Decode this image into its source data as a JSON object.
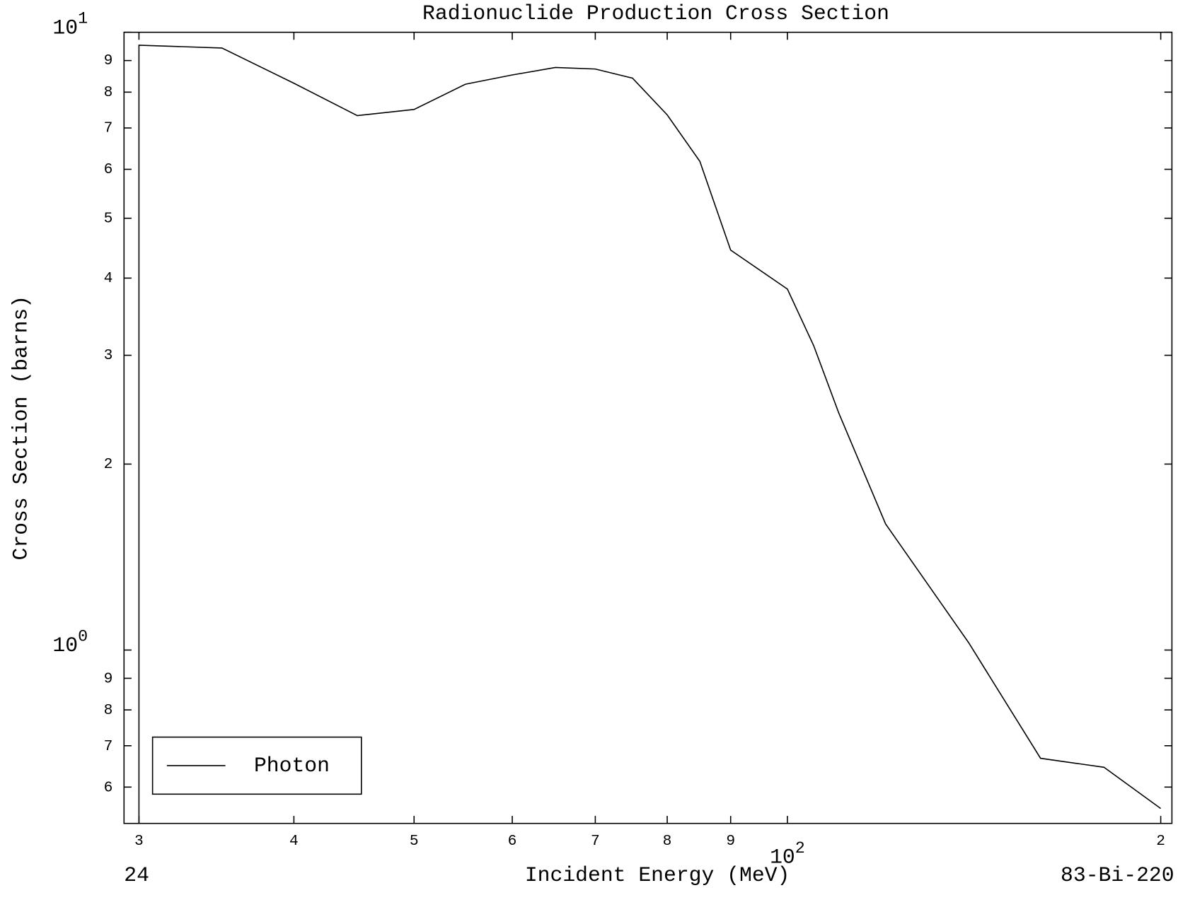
{
  "chart_data": {
    "type": "line",
    "title": "Radionuclide Production Cross Section",
    "x_label": "Incident Energy (MeV)",
    "y_label": "Cross Section (barns)",
    "footer_left": "24",
    "footer_right": "83-Bi-220",
    "xscale": "log",
    "yscale": "log",
    "xlim": [
      29.18,
      204.2
    ],
    "ylim": [
      0.524,
      10
    ],
    "xticks": [
      {
        "value": 30,
        "label": "3"
      },
      {
        "value": 40,
        "label": "4"
      },
      {
        "value": 50,
        "label": "5"
      },
      {
        "value": 60,
        "label": "6"
      },
      {
        "value": 70,
        "label": "7"
      },
      {
        "value": 80,
        "label": "8"
      },
      {
        "value": 90,
        "label": "9"
      },
      {
        "value": 100,
        "label": "10",
        "exp": "2"
      },
      {
        "value": 200,
        "label": "2"
      }
    ],
    "yticks": [
      {
        "value": 10,
        "label": "10",
        "exp": "1"
      },
      9,
      8,
      7,
      6,
      5,
      4,
      3,
      2,
      {
        "value": 1,
        "label": "10",
        "exp": "0"
      },
      {
        "value": 0.9,
        "label": "9"
      },
      {
        "value": 0.8,
        "label": "8"
      },
      {
        "value": 0.7,
        "label": "7"
      },
      {
        "value": 0.6,
        "label": "6"
      }
    ],
    "legend": "lower left",
    "series": [
      {
        "name": "Photon",
        "color": "#000000",
        "x": [
          30,
          30,
          35,
          40,
          45,
          50,
          55,
          60,
          65,
          70,
          75,
          80,
          85,
          90,
          100,
          105,
          110,
          120,
          140,
          160,
          180,
          200
        ],
        "values": [
          0,
          9.53,
          9.43,
          8.27,
          7.33,
          7.5,
          8.24,
          8.53,
          8.77,
          8.72,
          8.43,
          7.35,
          6.18,
          4.44,
          3.84,
          3.11,
          2.42,
          1.6,
          1.028,
          0.668,
          0.646,
          0.554
        ]
      }
    ]
  }
}
